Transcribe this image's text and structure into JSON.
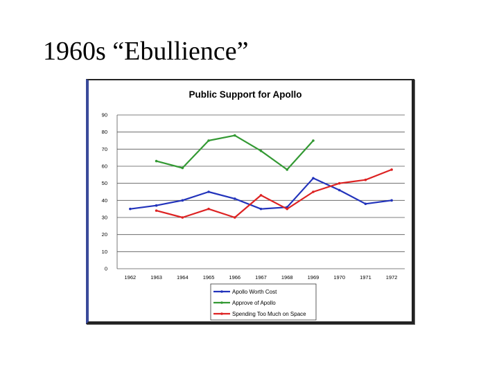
{
  "slide": {
    "title": "1960s “Ebullience”"
  },
  "chart_data": {
    "type": "line",
    "title": "Public Support for Apollo",
    "xlabel": "",
    "ylabel": "",
    "ylim": [
      0,
      90
    ],
    "yticks": [
      0,
      10,
      20,
      30,
      40,
      50,
      60,
      70,
      80,
      90
    ],
    "categories": [
      "1962",
      "1963",
      "1964",
      "1965",
      "1966",
      "1967",
      "1968",
      "1969",
      "1970",
      "1971",
      "1972"
    ],
    "grid": true,
    "legend_position": "bottom",
    "series": [
      {
        "name": "Apollo Worth Cost",
        "color": "#2233bb",
        "values": [
          35,
          37,
          40,
          45,
          41,
          35,
          36,
          53,
          46,
          38,
          40
        ]
      },
      {
        "name": "Approve of Apollo",
        "color": "#339933",
        "values": [
          null,
          63,
          59,
          75,
          78,
          69,
          58,
          75,
          null,
          null,
          null
        ]
      },
      {
        "name": "Spending Too Much on Space",
        "color": "#dd2222",
        "values": [
          null,
          34,
          30,
          35,
          30,
          43,
          35,
          45,
          50,
          52,
          58
        ]
      }
    ]
  }
}
